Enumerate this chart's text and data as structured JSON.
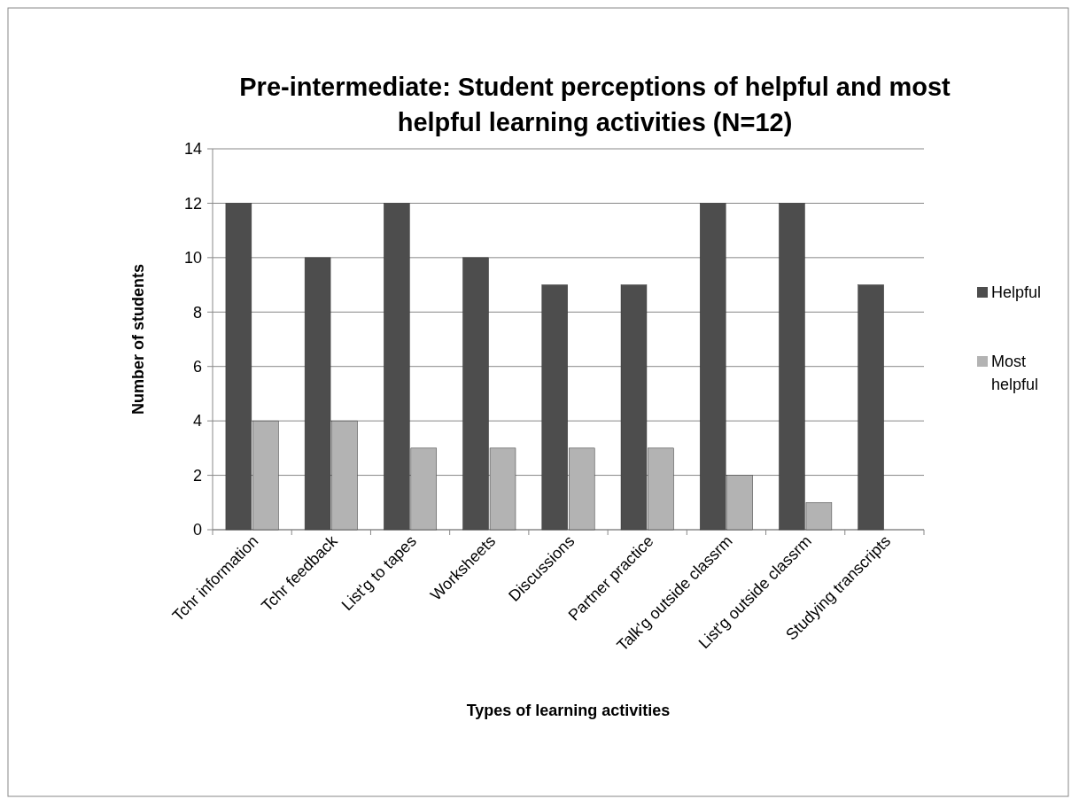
{
  "chart_data": {
    "type": "bar",
    "title": "Pre-intermediate: Student perceptions of helpful and most helpful learning activities (N=12)",
    "xlabel": "Types of learning activities",
    "ylabel": "Number of students",
    "categories": [
      "Tchr information",
      "Tchr feedback",
      "List'g to tapes",
      "Worksheets",
      "Discussions",
      "Partner practice",
      "Talk'g outside classrm",
      "List'g outside classrm",
      "Studying transcripts"
    ],
    "series": [
      {
        "name": "Helpful",
        "color": "#4d4d4d",
        "values": [
          12,
          10,
          12,
          10,
          9,
          9,
          12,
          12,
          9
        ]
      },
      {
        "name": "Most helpful",
        "color": "#b3b3b3",
        "values": [
          4,
          4,
          3,
          3,
          3,
          3,
          2,
          1,
          0
        ]
      }
    ],
    "ylim": [
      0,
      14
    ],
    "yticks": [
      0,
      2,
      4,
      6,
      8,
      10,
      12,
      14
    ],
    "grid": "y",
    "legend": "right"
  }
}
